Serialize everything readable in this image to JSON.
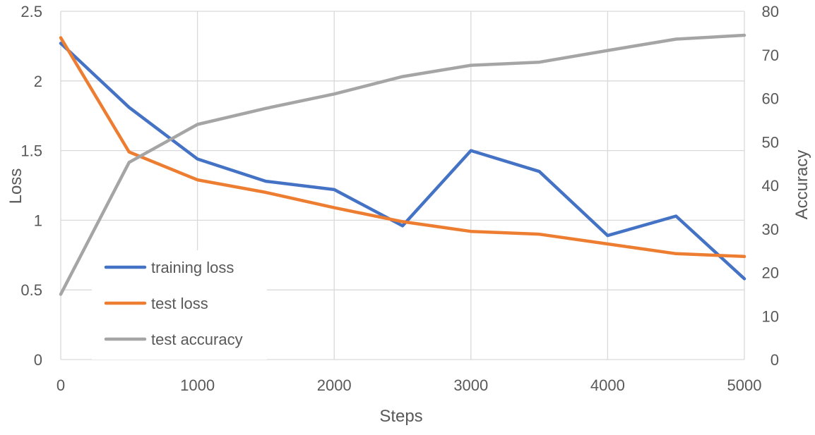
{
  "chart_data": {
    "type": "line",
    "title": "",
    "xlabel": "Steps",
    "ylabel": "Loss",
    "y2label": "Accuracy",
    "xlim": [
      0,
      5000
    ],
    "ylim": [
      0,
      2.5
    ],
    "y2lim": [
      0,
      80
    ],
    "xticks": [
      0,
      1000,
      2000,
      3000,
      4000,
      5000
    ],
    "yticks": [
      0,
      0.5,
      1,
      1.5,
      2,
      2.5
    ],
    "y2ticks": [
      0,
      10,
      20,
      30,
      40,
      50,
      60,
      70,
      80
    ],
    "x": [
      0,
      500,
      1000,
      1500,
      2000,
      2500,
      3000,
      3500,
      4000,
      4500,
      5000
    ],
    "grid": "vertical",
    "legend": "lower-left",
    "series": [
      {
        "name": "training loss",
        "axis": "left",
        "color": "#4472C4",
        "values": [
          2.27,
          1.81,
          1.44,
          1.28,
          1.22,
          0.96,
          1.5,
          1.35,
          0.89,
          1.03,
          0.58
        ]
      },
      {
        "name": "test loss",
        "axis": "left",
        "color": "#ED7D31",
        "values": [
          2.31,
          1.49,
          1.29,
          1.2,
          1.09,
          0.99,
          0.92,
          0.9,
          0.83,
          0.76,
          0.74
        ]
      },
      {
        "name": "test accuracy",
        "axis": "right",
        "color": "#A5A5A5",
        "values": [
          15,
          45.3,
          54,
          57.7,
          61,
          65,
          67.6,
          68.3,
          71,
          73.6,
          74.5
        ]
      }
    ]
  }
}
